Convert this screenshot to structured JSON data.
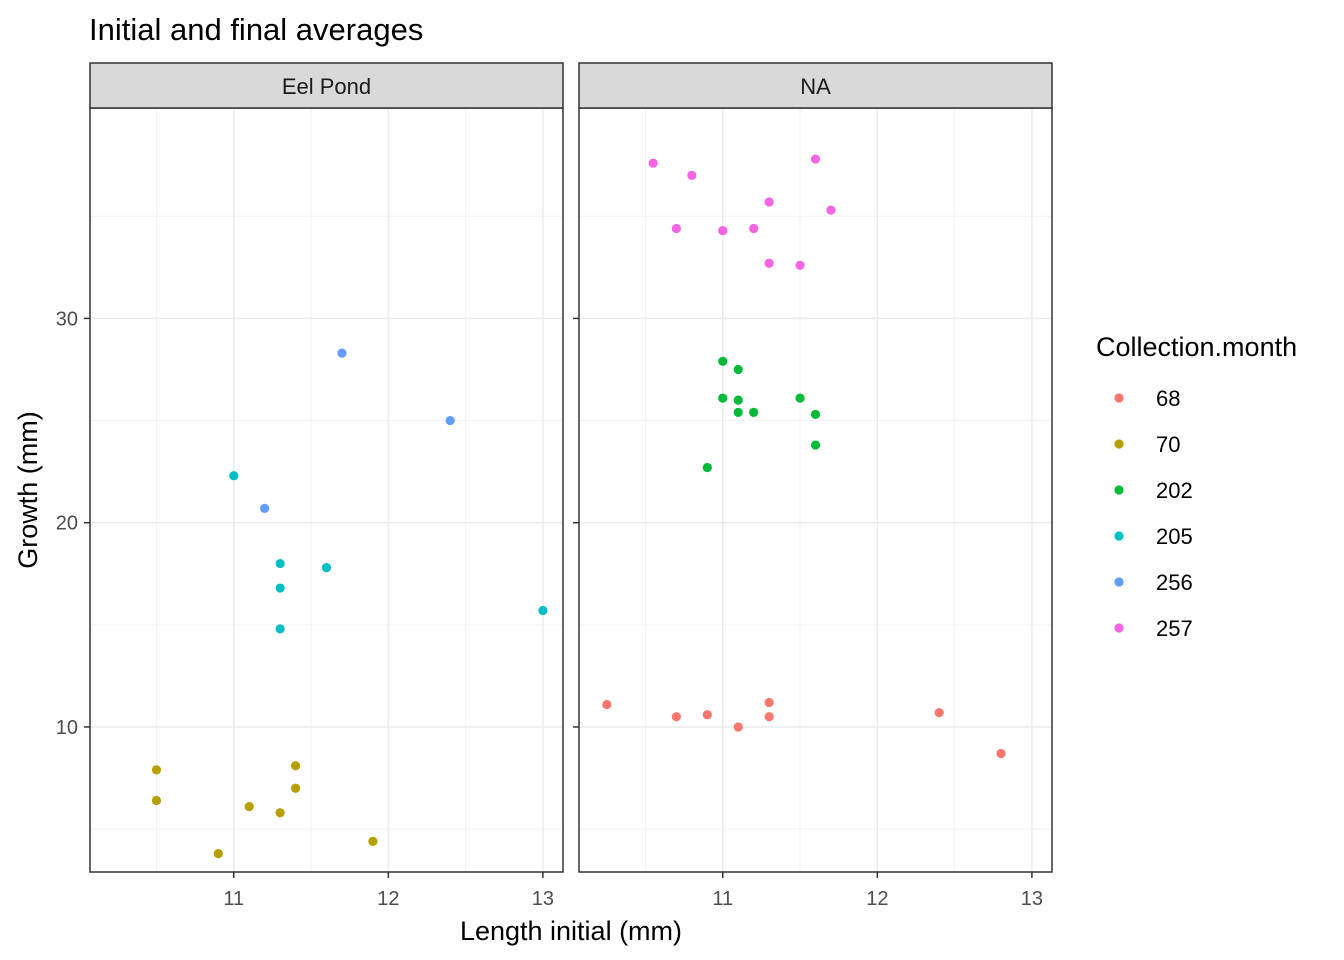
{
  "chart_data": {
    "type": "scatter",
    "title": "Initial and final averages",
    "xlabel": "Length initial (mm)",
    "ylabel": "Growth (mm)",
    "xlim": [
      10.07,
      13.13
    ],
    "ylim": [
      2.9,
      40.3
    ],
    "x_ticks": [
      11,
      12,
      13
    ],
    "x_tick_labels": [
      "11",
      "12",
      "13"
    ],
    "y_ticks": [
      10,
      20,
      30
    ],
    "y_tick_labels": [
      "10",
      "20",
      "30"
    ],
    "grid": true,
    "legend_position": "right",
    "legend_title": "Collection.month",
    "groups": [
      {
        "name": "68",
        "color": "#F8766D"
      },
      {
        "name": "70",
        "color": "#B79F00"
      },
      {
        "name": "202",
        "color": "#00BA38"
      },
      {
        "name": "205",
        "color": "#00BFC4"
      },
      {
        "name": "256",
        "color": "#619CFF"
      },
      {
        "name": "257",
        "color": "#F564E3"
      }
    ],
    "panels": [
      {
        "label": "Eel Pond",
        "points": [
          {
            "group": "70",
            "x": 10.5,
            "y": 7.9
          },
          {
            "group": "70",
            "x": 10.5,
            "y": 6.4
          },
          {
            "group": "70",
            "x": 10.9,
            "y": 3.8
          },
          {
            "group": "70",
            "x": 11.1,
            "y": 6.1
          },
          {
            "group": "70",
            "x": 11.3,
            "y": 5.8
          },
          {
            "group": "70",
            "x": 11.4,
            "y": 8.1
          },
          {
            "group": "70",
            "x": 11.4,
            "y": 7.0
          },
          {
            "group": "70",
            "x": 11.9,
            "y": 4.4
          },
          {
            "group": "205",
            "x": 11.0,
            "y": 22.3
          },
          {
            "group": "205",
            "x": 11.3,
            "y": 18.0
          },
          {
            "group": "205",
            "x": 11.3,
            "y": 16.8
          },
          {
            "group": "205",
            "x": 11.3,
            "y": 14.8
          },
          {
            "group": "205",
            "x": 11.6,
            "y": 17.8
          },
          {
            "group": "205",
            "x": 13.0,
            "y": 15.7
          },
          {
            "group": "256",
            "x": 11.2,
            "y": 20.7
          },
          {
            "group": "256",
            "x": 11.7,
            "y": 28.3
          },
          {
            "group": "256",
            "x": 12.4,
            "y": 25.0
          }
        ]
      },
      {
        "label": "NA",
        "points": [
          {
            "group": "68",
            "x": 10.25,
            "y": 11.1
          },
          {
            "group": "68",
            "x": 10.7,
            "y": 10.5
          },
          {
            "group": "68",
            "x": 10.9,
            "y": 10.6
          },
          {
            "group": "68",
            "x": 11.1,
            "y": 10.0
          },
          {
            "group": "68",
            "x": 11.3,
            "y": 11.2
          },
          {
            "group": "68",
            "x": 11.3,
            "y": 10.5
          },
          {
            "group": "68",
            "x": 12.4,
            "y": 10.7
          },
          {
            "group": "68",
            "x": 12.8,
            "y": 8.7
          },
          {
            "group": "202",
            "x": 10.9,
            "y": 22.7
          },
          {
            "group": "202",
            "x": 11.0,
            "y": 27.9
          },
          {
            "group": "202",
            "x": 11.0,
            "y": 26.1
          },
          {
            "group": "202",
            "x": 11.1,
            "y": 27.5
          },
          {
            "group": "202",
            "x": 11.1,
            "y": 26.0
          },
          {
            "group": "202",
            "x": 11.1,
            "y": 25.4
          },
          {
            "group": "202",
            "x": 11.2,
            "y": 25.4
          },
          {
            "group": "202",
            "x": 11.5,
            "y": 26.1
          },
          {
            "group": "202",
            "x": 11.6,
            "y": 25.3
          },
          {
            "group": "202",
            "x": 11.6,
            "y": 23.8
          },
          {
            "group": "257",
            "x": 10.55,
            "y": 37.6
          },
          {
            "group": "257",
            "x": 10.7,
            "y": 34.4
          },
          {
            "group": "257",
            "x": 10.8,
            "y": 37.0
          },
          {
            "group": "257",
            "x": 11.0,
            "y": 34.3
          },
          {
            "group": "257",
            "x": 11.2,
            "y": 34.4
          },
          {
            "group": "257",
            "x": 11.3,
            "y": 35.7
          },
          {
            "group": "257",
            "x": 11.3,
            "y": 32.7
          },
          {
            "group": "257",
            "x": 11.5,
            "y": 32.6
          },
          {
            "group": "257",
            "x": 11.6,
            "y": 37.8
          },
          {
            "group": "257",
            "x": 11.7,
            "y": 35.3
          }
        ]
      }
    ]
  }
}
